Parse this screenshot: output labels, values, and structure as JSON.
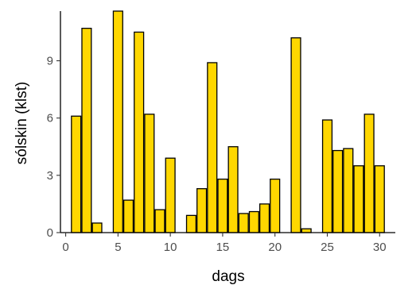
{
  "chart_data": {
    "type": "bar",
    "xlabel": "dags",
    "ylabel": "sólskin (klst)",
    "x": [
      1,
      2,
      3,
      4,
      5,
      6,
      7,
      8,
      9,
      10,
      11,
      12,
      13,
      14,
      15,
      16,
      17,
      18,
      19,
      20,
      21,
      22,
      23,
      24,
      25,
      26,
      27,
      28,
      29,
      30
    ],
    "values": [
      6.1,
      10.7,
      0.5,
      0,
      11.6,
      1.7,
      10.5,
      6.2,
      1.2,
      3.9,
      0,
      0.9,
      2.3,
      8.9,
      2.8,
      4.5,
      1.0,
      1.1,
      1.5,
      2.8,
      0,
      10.2,
      0.2,
      0,
      5.9,
      4.3,
      4.4,
      3.5,
      6.2,
      3.5
    ],
    "xticks": [
      0,
      5,
      10,
      15,
      20,
      25,
      30
    ],
    "xtick_labels": [
      "0",
      "5",
      "10",
      "15",
      "20",
      "25",
      "30"
    ],
    "yticks": [
      0,
      3,
      6,
      9
    ],
    "ytick_labels": [
      "0",
      "3",
      "6",
      "9"
    ],
    "xlim": [
      -0.5,
      31.5
    ],
    "ylim": [
      0,
      11.6
    ],
    "grid": false,
    "colors": {
      "bar_fill": "#FFD700",
      "bar_stroke": "#000000",
      "axis": "#000000",
      "tick_text": "#4d4d4d"
    }
  }
}
